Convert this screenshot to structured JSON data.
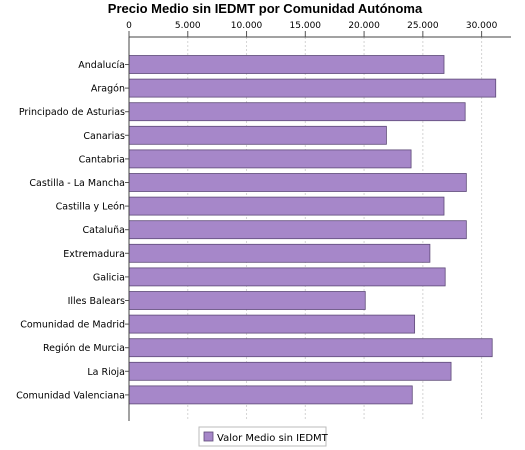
{
  "chart_data": {
    "type": "bar",
    "orientation": "horizontal",
    "title": "Precio Medio sin IEDMT por Comunidad Autónoma",
    "categories": [
      "Andalucía",
      "Aragón",
      "Principado de Asturias",
      "Canarias",
      "Cantabria",
      "Castilla - La Mancha",
      "Castilla y León",
      "Cataluña",
      "Extremadura",
      "Galicia",
      "Illes Balears",
      "Comunidad de Madrid",
      "Región de Murcia",
      "La Rioja",
      "Comunidad Valenciana"
    ],
    "series": [
      {
        "name": "Valor Medio sin IEDMT",
        "color": "#a687c9",
        "values": [
          26800,
          31200,
          28600,
          21900,
          24000,
          28700,
          26800,
          28700,
          25600,
          26900,
          20100,
          24300,
          30900,
          27400,
          24100
        ]
      }
    ],
    "xaxis": {
      "position": "top",
      "min": 0,
      "max": 32500,
      "ticks": [
        0,
        5000,
        10000,
        15000,
        20000,
        25000,
        30000
      ],
      "tick_labels": [
        "0",
        "5.000",
        "10.000",
        "15.000",
        "20.000",
        "25.000",
        "30.000"
      ]
    },
    "grid": true,
    "legend_position": "bottom-center"
  }
}
